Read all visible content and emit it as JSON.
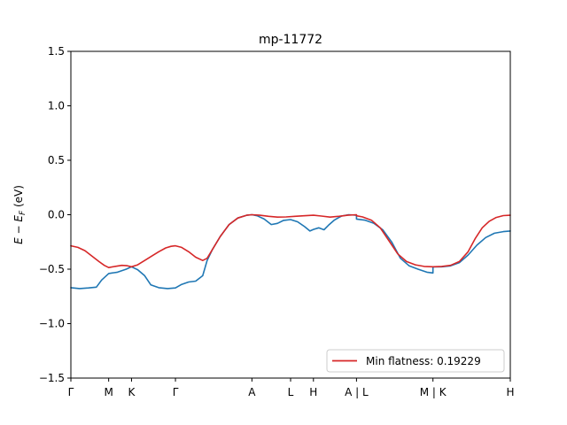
{
  "chart_data": {
    "type": "line",
    "title": "mp-11772",
    "xlabel": "",
    "ylabel": "E − E_F (eV)",
    "ylabel_main": "E − E",
    "ylabel_sub": "F",
    "ylabel_unit": " (eV)",
    "ylim": [
      -1.5,
      1.5
    ],
    "xlim": [
      0,
      5.0
    ],
    "yticks": [
      {
        "value": 1.5,
        "label": "1.5"
      },
      {
        "value": 1.0,
        "label": "1.0"
      },
      {
        "value": 0.5,
        "label": "0.5"
      },
      {
        "value": 0.0,
        "label": "0.0"
      },
      {
        "value": -0.5,
        "label": "−0.5"
      },
      {
        "value": -1.0,
        "label": "−1.0"
      },
      {
        "value": -1.5,
        "label": "−1.5"
      }
    ],
    "xticks": [
      {
        "value": 0.0,
        "label": "Γ"
      },
      {
        "value": 0.43,
        "label": "M"
      },
      {
        "value": 0.69,
        "label": "K"
      },
      {
        "value": 1.19,
        "label": "Γ"
      },
      {
        "value": 2.06,
        "label": "A"
      },
      {
        "value": 2.5,
        "label": "L"
      },
      {
        "value": 2.76,
        "label": "H"
      },
      {
        "value": 3.25,
        "label": "A | L"
      },
      {
        "value": 4.12,
        "label": "M | K"
      },
      {
        "value": 5.0,
        "label": "H"
      }
    ],
    "legend": {
      "position": "lower-right",
      "entries": [
        "Min flatness: 0.19229"
      ]
    },
    "grid": false,
    "series": [
      {
        "name": "",
        "color": "#1f77b4",
        "points": [
          [
            0.0,
            -0.67
          ],
          [
            0.1,
            -0.678
          ],
          [
            0.2,
            -0.672
          ],
          [
            0.29,
            -0.665
          ],
          [
            0.35,
            -0.6
          ],
          [
            0.43,
            -0.54
          ],
          [
            0.53,
            -0.528
          ],
          [
            0.63,
            -0.5
          ],
          [
            0.69,
            -0.478
          ],
          [
            0.76,
            -0.505
          ],
          [
            0.84,
            -0.56
          ],
          [
            0.91,
            -0.645
          ],
          [
            1.0,
            -0.67
          ],
          [
            1.1,
            -0.678
          ],
          [
            1.19,
            -0.672
          ],
          [
            1.26,
            -0.64
          ],
          [
            1.34,
            -0.618
          ],
          [
            1.42,
            -0.61
          ],
          [
            1.5,
            -0.56
          ],
          [
            1.55,
            -0.42
          ],
          [
            1.61,
            -0.32
          ],
          [
            1.7,
            -0.2
          ],
          [
            1.8,
            -0.09
          ],
          [
            1.9,
            -0.03
          ],
          [
            2.0,
            -0.005
          ],
          [
            2.06,
            0.0
          ],
          [
            2.12,
            -0.01
          ],
          [
            2.2,
            -0.04
          ],
          [
            2.28,
            -0.09
          ],
          [
            2.35,
            -0.08
          ],
          [
            2.42,
            -0.052
          ],
          [
            2.5,
            -0.045
          ],
          [
            2.58,
            -0.065
          ],
          [
            2.66,
            -0.11
          ],
          [
            2.72,
            -0.15
          ],
          [
            2.76,
            -0.135
          ],
          [
            2.82,
            -0.12
          ],
          [
            2.88,
            -0.138
          ],
          [
            2.94,
            -0.09
          ],
          [
            3.0,
            -0.048
          ],
          [
            3.08,
            -0.012
          ],
          [
            3.16,
            0.0
          ],
          [
            3.25,
            -0.005
          ],
          [
            3.25,
            -0.04
          ],
          [
            3.35,
            -0.05
          ],
          [
            3.45,
            -0.08
          ],
          [
            3.55,
            -0.14
          ],
          [
            3.65,
            -0.25
          ],
          [
            3.75,
            -0.4
          ],
          [
            3.85,
            -0.47
          ],
          [
            3.95,
            -0.5
          ],
          [
            4.05,
            -0.528
          ],
          [
            4.12,
            -0.535
          ],
          [
            4.12,
            -0.48
          ],
          [
            4.22,
            -0.478
          ],
          [
            4.32,
            -0.47
          ],
          [
            4.42,
            -0.44
          ],
          [
            4.52,
            -0.37
          ],
          [
            4.62,
            -0.28
          ],
          [
            4.72,
            -0.21
          ],
          [
            4.82,
            -0.17
          ],
          [
            4.92,
            -0.155
          ],
          [
            5.0,
            -0.15
          ]
        ]
      },
      {
        "name": "Min flatness: 0.19229",
        "color": "#d62728",
        "points": [
          [
            0.0,
            -0.285
          ],
          [
            0.08,
            -0.3
          ],
          [
            0.16,
            -0.33
          ],
          [
            0.24,
            -0.38
          ],
          [
            0.32,
            -0.43
          ],
          [
            0.38,
            -0.465
          ],
          [
            0.43,
            -0.485
          ],
          [
            0.5,
            -0.475
          ],
          [
            0.58,
            -0.465
          ],
          [
            0.64,
            -0.468
          ],
          [
            0.69,
            -0.478
          ],
          [
            0.76,
            -0.46
          ],
          [
            0.84,
            -0.42
          ],
          [
            0.92,
            -0.38
          ],
          [
            1.0,
            -0.34
          ],
          [
            1.08,
            -0.305
          ],
          [
            1.14,
            -0.29
          ],
          [
            1.19,
            -0.285
          ],
          [
            1.26,
            -0.3
          ],
          [
            1.34,
            -0.34
          ],
          [
            1.42,
            -0.39
          ],
          [
            1.5,
            -0.42
          ],
          [
            1.55,
            -0.4
          ],
          [
            1.61,
            -0.32
          ],
          [
            1.7,
            -0.2
          ],
          [
            1.8,
            -0.09
          ],
          [
            1.9,
            -0.03
          ],
          [
            2.0,
            -0.005
          ],
          [
            2.06,
            0.0
          ],
          [
            2.15,
            -0.005
          ],
          [
            2.25,
            -0.015
          ],
          [
            2.35,
            -0.022
          ],
          [
            2.45,
            -0.02
          ],
          [
            2.55,
            -0.015
          ],
          [
            2.65,
            -0.01
          ],
          [
            2.76,
            -0.005
          ],
          [
            2.85,
            -0.012
          ],
          [
            2.95,
            -0.022
          ],
          [
            3.05,
            -0.015
          ],
          [
            3.15,
            -0.005
          ],
          [
            3.25,
            0.0
          ],
          [
            3.25,
            -0.01
          ],
          [
            3.32,
            -0.02
          ],
          [
            3.42,
            -0.05
          ],
          [
            3.52,
            -0.12
          ],
          [
            3.62,
            -0.24
          ],
          [
            3.72,
            -0.36
          ],
          [
            3.82,
            -0.43
          ],
          [
            3.92,
            -0.46
          ],
          [
            4.02,
            -0.475
          ],
          [
            4.12,
            -0.478
          ],
          [
            4.22,
            -0.475
          ],
          [
            4.32,
            -0.465
          ],
          [
            4.42,
            -0.43
          ],
          [
            4.52,
            -0.34
          ],
          [
            4.6,
            -0.22
          ],
          [
            4.68,
            -0.12
          ],
          [
            4.76,
            -0.06
          ],
          [
            4.84,
            -0.025
          ],
          [
            4.92,
            -0.008
          ],
          [
            5.0,
            -0.005
          ]
        ]
      }
    ]
  }
}
